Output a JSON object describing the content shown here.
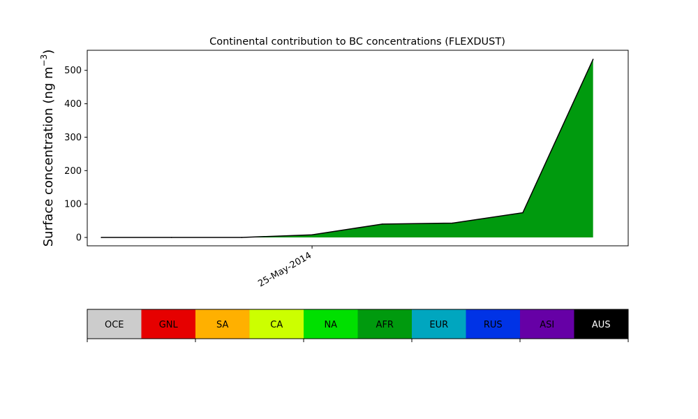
{
  "chart_data": {
    "type": "area",
    "title": "Continental contribution to BC concentrations (FLEXDUST)",
    "xlabel": "",
    "ylabel": "Surface concentration (ng m",
    "ylabel_unit_exponent": "−3",
    "ylabel_close": ")",
    "xlim": [
      -3.2,
      4.5
    ],
    "ylim": [
      -25,
      560
    ],
    "yticks": [
      0,
      100,
      200,
      300,
      400,
      500
    ],
    "xticks": [
      {
        "x": 0,
        "label": "25-May-2014"
      }
    ],
    "x": [
      -3,
      -2,
      -1,
      0,
      1,
      2,
      3,
      4
    ],
    "series": [
      {
        "name": "AFR",
        "color": "#009a0e",
        "values": [
          0,
          0,
          0,
          8,
          40,
          43,
          74,
          533
        ]
      }
    ],
    "legend": {
      "placement": "bottom",
      "items": [
        {
          "label": "OCE",
          "color": "#cccccc",
          "text_color": "#000000"
        },
        {
          "label": "GNL",
          "color": "#e60000",
          "text_color": "#000000"
        },
        {
          "label": "SA",
          "color": "#ffb000",
          "text_color": "#000000"
        },
        {
          "label": "CA",
          "color": "#ccff00",
          "text_color": "#000000"
        },
        {
          "label": "NA",
          "color": "#00e000",
          "text_color": "#000000"
        },
        {
          "label": "AFR",
          "color": "#009a0e",
          "text_color": "#000000"
        },
        {
          "label": "EUR",
          "color": "#00a6bf",
          "text_color": "#000000"
        },
        {
          "label": "RUS",
          "color": "#0033e6",
          "text_color": "#000000"
        },
        {
          "label": "ASI",
          "color": "#6600a6",
          "text_color": "#000000"
        },
        {
          "label": "AUS",
          "color": "#000000",
          "text_color": "#ffffff"
        }
      ]
    },
    "grid": false
  }
}
